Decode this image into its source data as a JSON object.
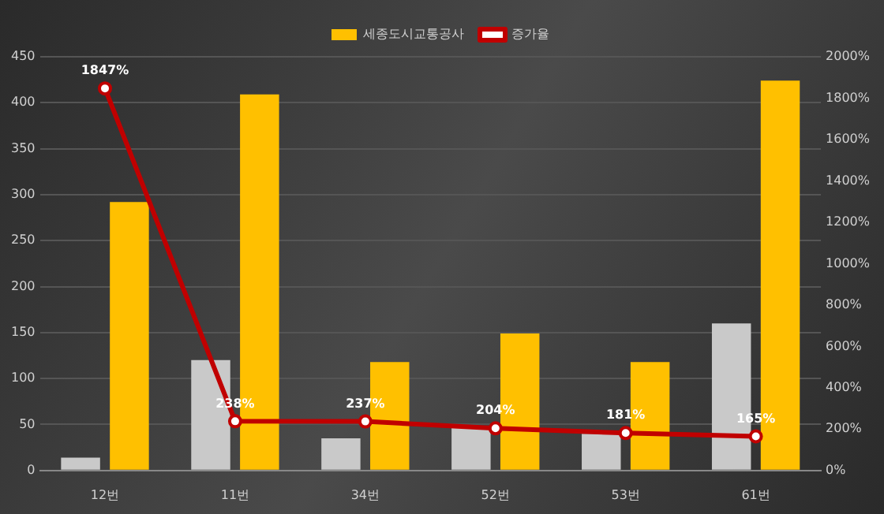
{
  "chart_data": {
    "type": "bar",
    "categories": [
      "12번",
      "11번",
      "34번",
      "52번",
      "53번",
      "61번"
    ],
    "series": [
      {
        "color": "#c9c9c9",
        "values": [
          14,
          120,
          35,
          48,
          40,
          160
        ]
      },
      {
        "name": "세종도시교통공사",
        "color": "#ffc000",
        "values": [
          292,
          409,
          118,
          149,
          118,
          424
        ]
      },
      {
        "name": "증가율",
        "type": "line",
        "axis": "y2",
        "color": "#c00000",
        "values": [
          1847,
          238,
          237,
          204,
          181,
          165
        ],
        "value_labels": [
          "1847%",
          "238%",
          "237%",
          "204%",
          "181%",
          "165%"
        ]
      }
    ],
    "ylim": [
      0,
      450
    ],
    "yticks": [
      0,
      50,
      100,
      150,
      200,
      250,
      300,
      350,
      400,
      450
    ],
    "y2lim": [
      0,
      2000
    ],
    "y2ticks": [
      {
        "value": 0,
        "label": "0%"
      },
      {
        "value": 200,
        "label": "200%"
      },
      {
        "value": 400,
        "label": "400%"
      },
      {
        "value": 600,
        "label": "600%"
      },
      {
        "value": 800,
        "label": "800%"
      },
      {
        "value": 1000,
        "label": "1000%"
      },
      {
        "value": 1200,
        "label": "1200%"
      },
      {
        "value": 1400,
        "label": "1400%"
      },
      {
        "value": 1600,
        "label": "1600%"
      },
      {
        "value": 1800,
        "label": "1800%"
      },
      {
        "value": 2000,
        "label": "2000%"
      }
    ],
    "grid": "y",
    "legend": "top",
    "marker": "circle"
  }
}
